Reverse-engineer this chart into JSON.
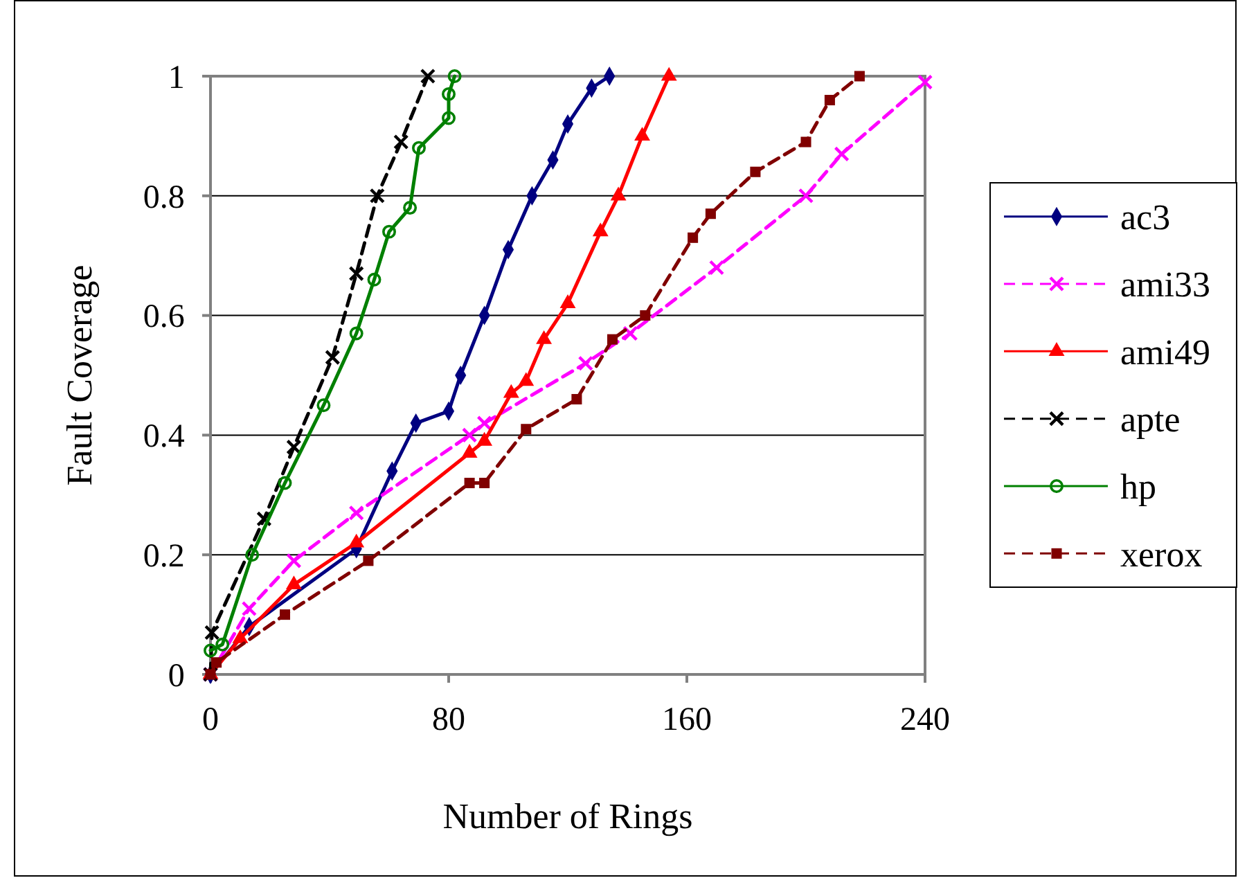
{
  "chart_data": {
    "type": "line",
    "xlabel": "Number of Rings",
    "ylabel": "Fault Coverage",
    "xlim": [
      0,
      240
    ],
    "xticks": [
      0,
      80,
      160,
      240
    ],
    "ylim": [
      0,
      1
    ],
    "yticks": [
      0,
      0.2,
      0.4,
      0.6,
      0.8,
      1
    ],
    "grid": "y",
    "legend": "right",
    "series": [
      {
        "name": "ac3",
        "color": "#000080",
        "marker": "diamond",
        "line_style": "solid",
        "x": [
          0,
          13,
          49,
          61,
          69,
          80,
          84,
          92,
          100,
          108,
          115,
          120,
          128,
          134
        ],
        "values": [
          0,
          0.08,
          0.21,
          0.34,
          0.42,
          0.44,
          0.5,
          0.6,
          0.71,
          0.8,
          0.86,
          0.92,
          0.98,
          1
        ]
      },
      {
        "name": "ami33",
        "color": "#ff00ff",
        "marker": "cross",
        "line_style": "dashed",
        "x": [
          0,
          13,
          28,
          49,
          87,
          92,
          126,
          141,
          170,
          200,
          212,
          240
        ],
        "values": [
          0,
          0.11,
          0.19,
          0.27,
          0.4,
          0.42,
          0.52,
          0.57,
          0.68,
          0.8,
          0.87,
          0.99
        ]
      },
      {
        "name": "ami49",
        "color": "#ff0000",
        "marker": "triangle",
        "line_style": "solid",
        "x": [
          0,
          10,
          28,
          49,
          87,
          92,
          101,
          106,
          112,
          120,
          131,
          137,
          145,
          154
        ],
        "values": [
          0,
          0.06,
          0.15,
          0.22,
          0.37,
          0.39,
          0.47,
          0.49,
          0.56,
          0.62,
          0.74,
          0.8,
          0.9,
          1
        ]
      },
      {
        "name": "apte",
        "color": "#000000",
        "marker": "cross",
        "line_style": "dashed",
        "x": [
          0,
          0.5,
          18,
          28,
          41,
          49,
          56,
          64,
          73
        ],
        "values": [
          0,
          0.07,
          0.26,
          0.38,
          0.53,
          0.67,
          0.8,
          0.89,
          1
        ]
      },
      {
        "name": "hp",
        "color": "#008000",
        "marker": "circle",
        "line_style": "solid",
        "x": [
          0,
          4,
          14,
          25,
          38,
          49,
          55,
          60,
          67,
          70,
          80,
          80,
          82
        ],
        "values": [
          0.04,
          0.05,
          0.2,
          0.32,
          0.45,
          0.57,
          0.66,
          0.74,
          0.78,
          0.88,
          0.93,
          0.97,
          1
        ]
      },
      {
        "name": "xerox",
        "color": "#800000",
        "marker": "square",
        "line_style": "dashed",
        "x": [
          0,
          2,
          25,
          53,
          87,
          92,
          106,
          123,
          135,
          146,
          162,
          168,
          183,
          200,
          208,
          218
        ],
        "values": [
          0,
          0.02,
          0.1,
          0.19,
          0.32,
          0.32,
          0.41,
          0.46,
          0.56,
          0.6,
          0.73,
          0.77,
          0.84,
          0.89,
          0.96,
          1
        ]
      }
    ]
  }
}
